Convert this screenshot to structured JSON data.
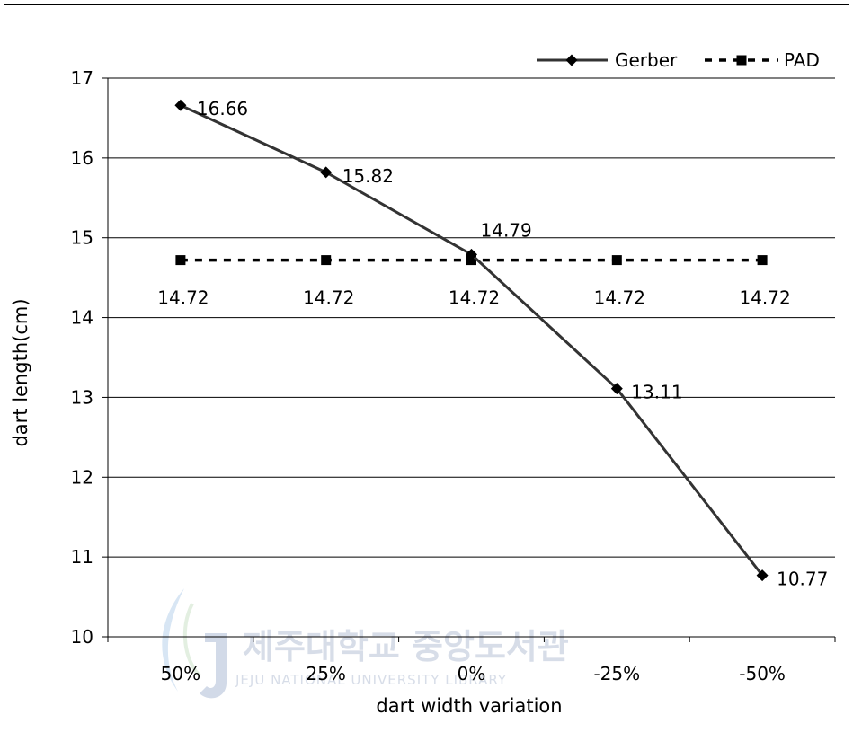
{
  "chart_data": {
    "type": "line",
    "categories": [
      "50%",
      "25%",
      "0%",
      "-25%",
      "-50%"
    ],
    "series": [
      {
        "name": "Gerber",
        "values": [
          16.66,
          15.82,
          14.79,
          13.11,
          10.77
        ],
        "labels": [
          "16.66",
          "15.82",
          "14.79",
          "13.11",
          "10.77"
        ],
        "color": "#333333",
        "marker": "diamond",
        "line": "solid"
      },
      {
        "name": "PAD",
        "values": [
          14.72,
          14.72,
          14.72,
          14.72,
          14.72
        ],
        "labels": [
          "14.72",
          "14.72",
          "14.72",
          "14.72",
          "14.72"
        ],
        "color": "#000000",
        "marker": "square",
        "line": "dashed"
      }
    ],
    "xlabel": "dart width variation",
    "ylabel": "dart length(cm)",
    "ylim": [
      10,
      17
    ],
    "yticks": [
      "10",
      "11",
      "12",
      "13",
      "14",
      "15",
      "16",
      "17"
    ],
    "grid": true,
    "legend_position": "top-right"
  },
  "watermark": {
    "title": "제주대학교 중앙도서관",
    "subtitle": "JEJU NATIONAL UNIVERSITY LIBRARY",
    "color": "#d7dde8"
  }
}
